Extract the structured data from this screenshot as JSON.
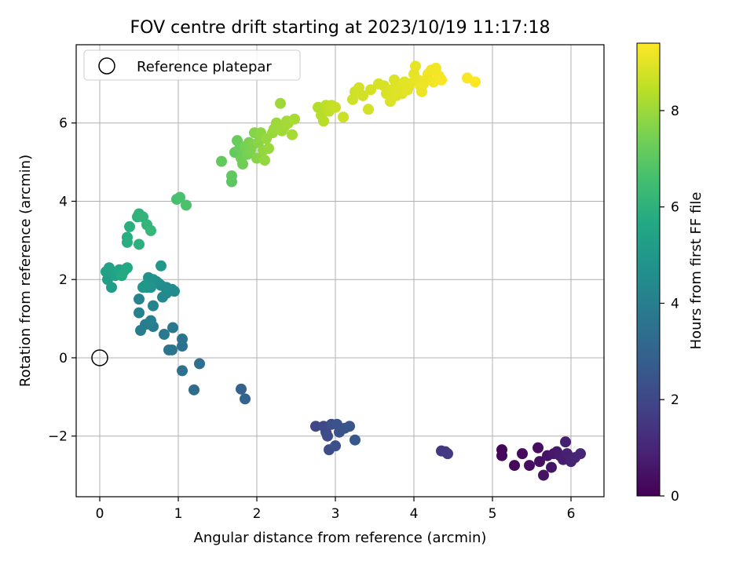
{
  "chart_data": {
    "type": "scatter",
    "title": "FOV centre drift starting at 2023/10/19 11:17:18",
    "xlabel": "Angular distance from reference (arcmin)",
    "ylabel": "Rotation from reference (arcmin)",
    "xlim": [
      -0.3,
      6.42
    ],
    "ylim": [
      -3.55,
      8.0
    ],
    "xticks": [
      0,
      1,
      2,
      3,
      4,
      5,
      6
    ],
    "yticks": [
      -2,
      0,
      2,
      4,
      6
    ],
    "xtick_labels": [
      "0",
      "1",
      "2",
      "3",
      "4",
      "5",
      "6"
    ],
    "ytick_labels": [
      "−2",
      "0",
      "2",
      "4",
      "6"
    ],
    "grid": true,
    "legend": {
      "position": "top-left",
      "entries": [
        "Reference platepar"
      ]
    },
    "reference_point": {
      "label": "Reference platepar",
      "x": 0,
      "y": 0,
      "marker": "open-circle"
    },
    "colorbar": {
      "label": "Hours from first FF file",
      "colormap": "viridis",
      "range": [
        0,
        9.4
      ],
      "ticks": [
        0,
        2,
        4,
        6,
        8
      ],
      "tick_labels": [
        "0",
        "2",
        "4",
        "6",
        "8"
      ]
    },
    "points": [
      [
        5.12,
        -2.35,
        0.1
      ],
      [
        5.12,
        -2.5,
        0.15
      ],
      [
        5.28,
        -2.75,
        0.2
      ],
      [
        5.38,
        -2.45,
        0.25
      ],
      [
        5.47,
        -2.75,
        0.3
      ],
      [
        5.58,
        -2.3,
        0.35
      ],
      [
        5.6,
        -2.65,
        0.4
      ],
      [
        5.65,
        -3.0,
        0.45
      ],
      [
        5.7,
        -2.5,
        0.5
      ],
      [
        5.75,
        -2.8,
        0.55
      ],
      [
        5.78,
        -2.45,
        0.6
      ],
      [
        5.82,
        -2.4,
        0.65
      ],
      [
        5.86,
        -2.5,
        0.7
      ],
      [
        5.9,
        -2.6,
        0.75
      ],
      [
        5.93,
        -2.15,
        0.8
      ],
      [
        5.95,
        -2.45,
        0.85
      ],
      [
        6.0,
        -2.65,
        0.9
      ],
      [
        6.05,
        -2.55,
        0.95
      ],
      [
        6.12,
        -2.45,
        1.0
      ],
      [
        4.35,
        -2.38,
        1.5
      ],
      [
        4.4,
        -2.4,
        1.55
      ],
      [
        4.43,
        -2.45,
        1.6
      ],
      [
        2.75,
        -1.75,
        2.0
      ],
      [
        2.85,
        -1.75,
        2.05
      ],
      [
        2.88,
        -1.9,
        2.1
      ],
      [
        2.9,
        -2.0,
        2.15
      ],
      [
        2.92,
        -2.35,
        2.2
      ],
      [
        2.95,
        -1.7,
        2.25
      ],
      [
        3.0,
        -2.25,
        2.3
      ],
      [
        3.02,
        -1.7,
        2.35
      ],
      [
        3.05,
        -1.9,
        2.4
      ],
      [
        3.12,
        -1.8,
        2.45
      ],
      [
        3.18,
        -1.75,
        2.5
      ],
      [
        3.25,
        -2.1,
        2.55
      ],
      [
        1.8,
        -0.8,
        2.9
      ],
      [
        1.85,
        -1.05,
        3.0
      ],
      [
        1.2,
        -0.82,
        3.3
      ],
      [
        1.27,
        -0.15,
        3.4
      ],
      [
        1.05,
        -0.33,
        3.45
      ],
      [
        1.05,
        0.3,
        3.55
      ],
      [
        1.05,
        0.48,
        3.6
      ],
      [
        0.88,
        0.2,
        3.65
      ],
      [
        0.92,
        0.2,
        3.7
      ],
      [
        0.93,
        0.77,
        3.75
      ],
      [
        0.82,
        0.6,
        3.8
      ],
      [
        0.68,
        0.8,
        3.85
      ],
      [
        0.52,
        0.7,
        3.9
      ],
      [
        0.58,
        0.85,
        3.95
      ],
      [
        0.62,
        0.88,
        4.0
      ],
      [
        0.65,
        0.95,
        4.05
      ],
      [
        0.5,
        1.15,
        4.1
      ],
      [
        0.5,
        1.5,
        4.15
      ],
      [
        0.68,
        1.33,
        4.2
      ],
      [
        0.8,
        1.55,
        4.3
      ],
      [
        0.85,
        1.65,
        4.35
      ],
      [
        0.95,
        1.7,
        4.4
      ],
      [
        0.92,
        1.75,
        4.45
      ],
      [
        0.85,
        1.8,
        4.5
      ],
      [
        0.78,
        1.85,
        4.55
      ],
      [
        0.75,
        1.9,
        4.6
      ],
      [
        0.72,
        1.95,
        4.65
      ],
      [
        0.68,
        2.0,
        4.7
      ],
      [
        0.62,
        2.05,
        4.75
      ],
      [
        0.6,
        1.8,
        4.8
      ],
      [
        0.65,
        1.8,
        4.85
      ],
      [
        0.58,
        1.85,
        4.9
      ],
      [
        0.55,
        1.8,
        4.95
      ],
      [
        0.78,
        2.35,
        5.0
      ],
      [
        0.15,
        1.8,
        5.2
      ],
      [
        0.1,
        2.0,
        5.25
      ],
      [
        0.08,
        2.2,
        5.3
      ],
      [
        0.12,
        2.3,
        5.35
      ],
      [
        0.2,
        2.1,
        5.4
      ],
      [
        0.22,
        2.2,
        5.45
      ],
      [
        0.25,
        2.25,
        5.5
      ],
      [
        0.3,
        2.2,
        5.55
      ],
      [
        0.32,
        2.25,
        5.6
      ],
      [
        0.35,
        2.3,
        5.65
      ],
      [
        0.28,
        2.1,
        5.7
      ],
      [
        0.35,
        3.08,
        5.8
      ],
      [
        0.35,
        2.95,
        5.85
      ],
      [
        0.38,
        3.35,
        5.9
      ],
      [
        0.5,
        2.9,
        5.95
      ],
      [
        0.48,
        3.6,
        6.0
      ],
      [
        0.5,
        3.68,
        6.05
      ],
      [
        0.55,
        3.6,
        6.1
      ],
      [
        0.6,
        3.4,
        6.15
      ],
      [
        0.65,
        3.25,
        6.2
      ],
      [
        0.98,
        4.05,
        6.6
      ],
      [
        1.02,
        4.1,
        6.65
      ],
      [
        1.1,
        3.9,
        6.7
      ],
      [
        1.68,
        4.5,
        7.0
      ],
      [
        1.68,
        4.65,
        7.05
      ],
      [
        1.55,
        5.02,
        7.1
      ],
      [
        1.72,
        5.25,
        7.15
      ],
      [
        1.75,
        5.55,
        7.2
      ],
      [
        1.78,
        5.35,
        7.25
      ],
      [
        1.8,
        5.1,
        7.3
      ],
      [
        1.82,
        4.95,
        7.35
      ],
      [
        1.85,
        5.4,
        7.4
      ],
      [
        1.88,
        5.2,
        7.45
      ],
      [
        1.9,
        5.5,
        7.5
      ],
      [
        1.92,
        5.3,
        7.55
      ],
      [
        1.95,
        5.45,
        7.6
      ],
      [
        1.97,
        5.75,
        7.65
      ],
      [
        2.0,
        5.1,
        7.7
      ],
      [
        2.02,
        5.5,
        7.75
      ],
      [
        2.05,
        5.75,
        7.8
      ],
      [
        2.08,
        5.3,
        7.85
      ],
      [
        2.1,
        5.05,
        7.9
      ],
      [
        2.12,
        5.6,
        7.92
      ],
      [
        2.15,
        5.35,
        7.94
      ],
      [
        2.2,
        5.75,
        7.96
      ],
      [
        2.22,
        5.85,
        7.98
      ],
      [
        2.25,
        6.0,
        8.0
      ],
      [
        2.28,
        5.95,
        8.02
      ],
      [
        2.3,
        6.5,
        8.04
      ],
      [
        2.32,
        5.8,
        8.06
      ],
      [
        2.35,
        5.9,
        8.08
      ],
      [
        2.38,
        6.05,
        8.1
      ],
      [
        2.4,
        6.0,
        8.12
      ],
      [
        2.45,
        5.7,
        8.14
      ],
      [
        2.48,
        6.1,
        8.16
      ],
      [
        2.78,
        6.4,
        8.3
      ],
      [
        2.82,
        6.2,
        8.35
      ],
      [
        2.85,
        6.05,
        8.4
      ],
      [
        2.88,
        6.45,
        8.45
      ],
      [
        2.92,
        6.3,
        8.5
      ],
      [
        2.95,
        6.45,
        8.55
      ],
      [
        3.0,
        6.4,
        8.6
      ],
      [
        3.1,
        6.15,
        8.65
      ],
      [
        3.22,
        6.6,
        8.7
      ],
      [
        3.25,
        6.8,
        8.72
      ],
      [
        3.3,
        6.9,
        8.74
      ],
      [
        3.35,
        6.7,
        8.76
      ],
      [
        3.42,
        6.35,
        8.78
      ],
      [
        3.45,
        6.85,
        8.8
      ],
      [
        3.55,
        7.0,
        8.82
      ],
      [
        3.62,
        6.95,
        8.84
      ],
      [
        3.65,
        6.75,
        8.86
      ],
      [
        3.7,
        6.55,
        8.88
      ],
      [
        3.72,
        6.85,
        8.9
      ],
      [
        3.75,
        7.1,
        8.92
      ],
      [
        3.78,
        6.7,
        8.94
      ],
      [
        3.8,
        6.9,
        8.96
      ],
      [
        3.85,
        6.75,
        8.98
      ],
      [
        3.88,
        7.05,
        9.0
      ],
      [
        3.92,
        6.85,
        9.02
      ],
      [
        3.95,
        7.0,
        9.04
      ],
      [
        4.0,
        7.25,
        9.06
      ],
      [
        4.02,
        7.45,
        9.08
      ],
      [
        4.05,
        7.1,
        9.1
      ],
      [
        4.08,
        6.95,
        9.12
      ],
      [
        4.1,
        6.8,
        9.14
      ],
      [
        4.12,
        7.0,
        9.16
      ],
      [
        4.15,
        7.1,
        9.18
      ],
      [
        4.18,
        7.25,
        9.2
      ],
      [
        4.22,
        7.35,
        9.22
      ],
      [
        4.25,
        7.05,
        9.24
      ],
      [
        4.28,
        7.4,
        9.26
      ],
      [
        4.32,
        7.2,
        9.28
      ],
      [
        4.35,
        7.1,
        9.3
      ],
      [
        4.68,
        7.15,
        9.33
      ],
      [
        4.78,
        7.05,
        9.36
      ]
    ]
  }
}
